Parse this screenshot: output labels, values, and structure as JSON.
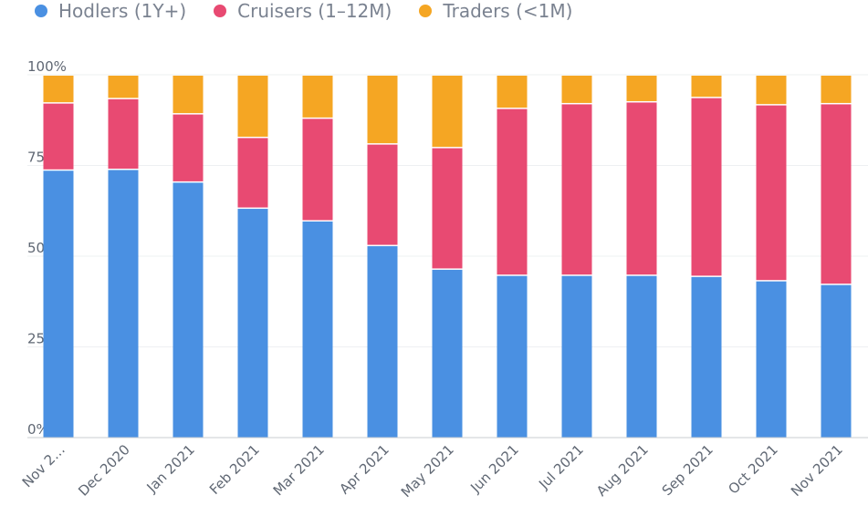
{
  "chart_data": {
    "type": "bar",
    "stacked": true,
    "title": "",
    "xlabel": "",
    "ylabel": "",
    "ylim": [
      0,
      100
    ],
    "yticks": [
      "0%",
      "25%",
      "50%",
      "75%",
      "100%"
    ],
    "categories": [
      "Nov 2…",
      "Dec 2020",
      "Jan 2021",
      "Feb 2021",
      "Mar 2021",
      "Apr 2021",
      "May 2021",
      "Jun 2021",
      "Jul 2021",
      "Aug 2021",
      "Sep 2021",
      "Oct 2021",
      "Nov 2021"
    ],
    "series": [
      {
        "name": "Hodlers (1Y+)",
        "color": "#4a90e2",
        "values": [
          73.8,
          74,
          70.5,
          63.3,
          59.8,
          53,
          46.5,
          44.8,
          44.8,
          44.8,
          44.5,
          43.3,
          42.3
        ]
      },
      {
        "name": "Cruisers (1–12M)",
        "color": "#e84a72",
        "values": [
          18.5,
          19.5,
          18.8,
          19.5,
          28.3,
          28,
          33.5,
          46,
          47.3,
          47.8,
          49.3,
          48.5,
          49.8
        ]
      },
      {
        "name": "Traders (<1M)",
        "color": "#f5a623",
        "values": [
          7.7,
          6.5,
          10.7,
          17.2,
          11.9,
          19,
          20,
          9.2,
          7.9,
          7.4,
          6.2,
          8.2,
          7.9
        ]
      }
    ],
    "legend_position": "top-left",
    "grid": true
  }
}
